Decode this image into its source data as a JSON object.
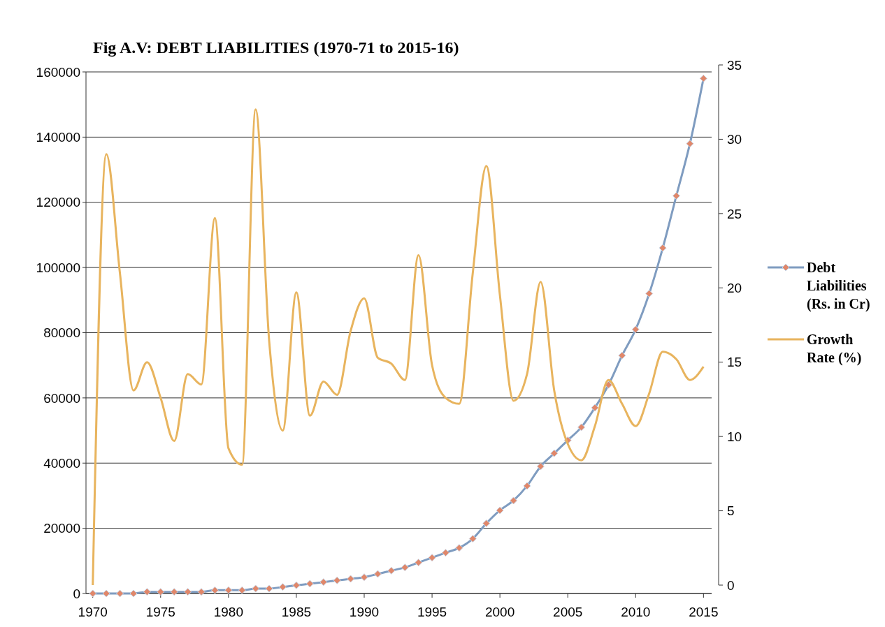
{
  "chart_data": {
    "type": "line",
    "title": "Fig  A.V: DEBT LIABILITIES (1970-71 to 2015-16)",
    "x": [
      1970,
      1971,
      1972,
      1973,
      1974,
      1975,
      1976,
      1977,
      1978,
      1979,
      1980,
      1981,
      1982,
      1983,
      1984,
      1985,
      1986,
      1987,
      1988,
      1989,
      1990,
      1991,
      1992,
      1993,
      1994,
      1995,
      1996,
      1997,
      1998,
      1999,
      2000,
      2001,
      2002,
      2003,
      2004,
      2005,
      2006,
      2007,
      2008,
      2009,
      2010,
      2011,
      2012,
      2013,
      2014,
      2015
    ],
    "series": [
      {
        "name": "Debt Liabilities (Rs. in Cr)",
        "color": "#7f9cc0",
        "marker": "diamond",
        "values": [
          0,
          0,
          0,
          0,
          500,
          500,
          500,
          500,
          500,
          1000,
          1000,
          1000,
          1500,
          1500,
          2000,
          2500,
          3000,
          3500,
          4000,
          4500,
          5000,
          6000,
          7000,
          8000,
          9500,
          11000,
          12500,
          14000,
          16800,
          21500,
          25500,
          28500,
          33000,
          39000,
          43000,
          47000,
          51000,
          57000,
          64000,
          73000,
          81000,
          92000,
          106000,
          122000,
          138000,
          158000
        ]
      },
      {
        "name": "Growth Rate (%)",
        "color": "#e8b45e",
        "marker": "none",
        "axis": "y2",
        "values": [
          0,
          29,
          21,
          13.1,
          15,
          12.6,
          9.7,
          14.2,
          13.5,
          24.7,
          9.2,
          8.1,
          32,
          16.4,
          10.4,
          19.7,
          11.4,
          13.7,
          12.8,
          17.1,
          19.3,
          15.3,
          14.9,
          13.8,
          22.2,
          14.8,
          12.6,
          12.2,
          21,
          28.2,
          19.5,
          12.4,
          14.2,
          20.4,
          13.1,
          9.5,
          8.4,
          10.7,
          13.8,
          12.2,
          10.7,
          12.9,
          15.7,
          15.2,
          13.8,
          14.7
        ]
      }
    ],
    "xlim": [
      1969.5,
      2015.6
    ],
    "xticks": [
      1970,
      1975,
      1980,
      1985,
      1990,
      1995,
      2000,
      2005,
      2010,
      2015
    ],
    "ylim": [
      0,
      160000
    ],
    "yticks": [
      0,
      20000,
      40000,
      60000,
      80000,
      100000,
      120000,
      140000,
      160000
    ],
    "y2lim": [
      0,
      35
    ],
    "y2ticks": [
      0,
      5,
      10,
      15,
      20,
      25,
      30,
      35
    ],
    "grid": "y",
    "legend": "right"
  }
}
